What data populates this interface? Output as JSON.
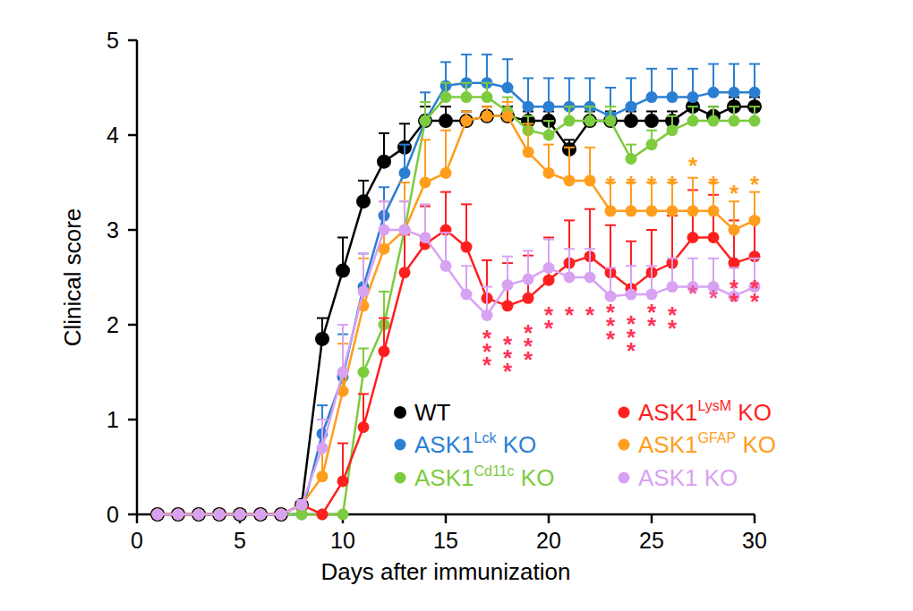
{
  "chart_data": {
    "type": "line",
    "x_label": "Days after immunization",
    "y_label": "Clinical score",
    "x": [
      1,
      2,
      3,
      4,
      5,
      6,
      7,
      8,
      9,
      10,
      11,
      12,
      13,
      14,
      15,
      16,
      17,
      18,
      19,
      20,
      21,
      22,
      23,
      24,
      25,
      26,
      27,
      28,
      29,
      30
    ],
    "xlim": [
      0,
      30
    ],
    "xticks": [
      0,
      5,
      10,
      15,
      20,
      25,
      30
    ],
    "ylim": [
      0,
      5
    ],
    "yticks": [
      0,
      1,
      2,
      3,
      4,
      5
    ],
    "grid": false,
    "legend": "bottom",
    "marker": "circle",
    "series": [
      {
        "name": "WT",
        "color": "#000000",
        "values": [
          0,
          0,
          0,
          0,
          0,
          0,
          0,
          0.1,
          1.85,
          2.57,
          3.3,
          3.72,
          3.87,
          4.15,
          4.15,
          4.15,
          4.2,
          4.2,
          4.15,
          4.15,
          3.85,
          4.15,
          4.15,
          4.15,
          4.15,
          4.15,
          4.3,
          4.2,
          4.3,
          4.3
        ],
        "errors": [
          0,
          0,
          0,
          0,
          0,
          0,
          0,
          0.05,
          0.22,
          0.35,
          0.22,
          0.3,
          0.25,
          0.15,
          0.15,
          0.1,
          0.1,
          0.1,
          0.1,
          0.1,
          0.1,
          0.1,
          0.1,
          0.1,
          0.1,
          0.1,
          0.1,
          0.1,
          0.1,
          0.1
        ]
      },
      {
        "name": "ASK1Lck KO",
        "color": "#2b7fd3",
        "values": [
          0,
          0,
          0,
          0,
          0,
          0,
          0,
          0,
          0.85,
          1.45,
          2.4,
          3.15,
          3.6,
          4.15,
          4.52,
          4.55,
          4.55,
          4.5,
          4.3,
          4.3,
          4.3,
          4.3,
          4.2,
          4.3,
          4.4,
          4.4,
          4.4,
          4.45,
          4.45,
          4.45
        ],
        "errors": [
          0,
          0,
          0,
          0,
          0,
          0,
          0,
          0.05,
          0.3,
          0.45,
          0.35,
          0.3,
          0.3,
          0.3,
          0.25,
          0.3,
          0.3,
          0.3,
          0.3,
          0.3,
          0.3,
          0.3,
          0.3,
          0.3,
          0.3,
          0.3,
          0.3,
          0.3,
          0.3,
          0.3
        ]
      },
      {
        "name": "ASK1Cd11c KO",
        "color": "#7dcb3e",
        "values": [
          0,
          0,
          0,
          0,
          0,
          0,
          0,
          0,
          0,
          0,
          1.5,
          2.0,
          3.0,
          4.15,
          4.4,
          4.4,
          4.4,
          4.25,
          4.05,
          4.0,
          4.15,
          4.15,
          4.15,
          3.75,
          3.9,
          4.05,
          4.15,
          4.15,
          4.15,
          4.15
        ],
        "errors": [
          0,
          0,
          0,
          0,
          0,
          0,
          0,
          0.05,
          0,
          0,
          0.25,
          0.35,
          0.3,
          0.2,
          0.15,
          0.15,
          0.15,
          0.15,
          0.15,
          0.15,
          0.15,
          0.15,
          0.15,
          0.15,
          0.15,
          0.15,
          0.15,
          0.15,
          0.15,
          0.15
        ]
      },
      {
        "name": "ASK1LysM KO",
        "color": "#ff1f1f",
        "values": [
          0,
          0,
          0,
          0,
          0,
          0,
          0,
          0.1,
          0,
          0.35,
          0.92,
          1.72,
          2.55,
          2.85,
          3.0,
          2.82,
          2.28,
          2.2,
          2.28,
          2.47,
          2.65,
          2.72,
          2.55,
          2.38,
          2.55,
          2.65,
          2.92,
          2.92,
          2.65,
          2.72
        ],
        "errors": [
          0,
          0,
          0,
          0,
          0,
          0,
          0,
          0.05,
          0,
          0.4,
          0.35,
          0.35,
          0.4,
          0.4,
          0.4,
          0.45,
          0.4,
          0.45,
          0.45,
          0.45,
          0.45,
          0.5,
          0.5,
          0.5,
          0.45,
          0.5,
          0.5,
          0.45,
          0.45,
          0.4
        ]
      },
      {
        "name": "ASK1GFAP KO",
        "color": "#ff9d1c",
        "values": [
          0,
          0,
          0,
          0,
          0,
          0,
          0,
          0.1,
          0.4,
          1.3,
          2.2,
          2.8,
          3.0,
          3.5,
          3.6,
          4.15,
          4.2,
          4.2,
          3.82,
          3.6,
          3.52,
          3.52,
          3.2,
          3.2,
          3.2,
          3.2,
          3.2,
          3.2,
          3.0,
          3.1
        ],
        "errors": [
          0,
          0,
          0,
          0,
          0,
          0,
          0,
          0.05,
          0.3,
          0.5,
          0.5,
          0.5,
          0.5,
          0.45,
          0.45,
          0.1,
          0.1,
          0.15,
          0.3,
          0.3,
          0.35,
          0.35,
          0.3,
          0.3,
          0.3,
          0.3,
          0.35,
          0.3,
          0.3,
          0.3
        ]
      },
      {
        "name": "ASK1 KO",
        "color": "#d8a2f3",
        "values": [
          0,
          0,
          0,
          0,
          0,
          0,
          0,
          0.1,
          0.7,
          1.5,
          2.35,
          3.0,
          3.0,
          2.92,
          2.62,
          2.32,
          2.1,
          2.42,
          2.48,
          2.6,
          2.5,
          2.5,
          2.3,
          2.32,
          2.32,
          2.4,
          2.4,
          2.4,
          2.3,
          2.4
        ],
        "errors": [
          0,
          0,
          0,
          0,
          0,
          0,
          0,
          0.05,
          0.3,
          0.5,
          0.4,
          0.3,
          0.3,
          0.35,
          0.35,
          0.3,
          0.3,
          0.3,
          0.3,
          0.3,
          0.3,
          0.3,
          0.3,
          0.3,
          0.3,
          0.3,
          0.3,
          0.3,
          0.3,
          0.3
        ]
      }
    ],
    "annotations": [
      {
        "x": 23,
        "y": 3.55,
        "text": "*",
        "color": "#ff9d1c"
      },
      {
        "x": 24,
        "y": 3.55,
        "text": "*",
        "color": "#ff9d1c"
      },
      {
        "x": 25,
        "y": 3.55,
        "text": "*",
        "color": "#ff9d1c"
      },
      {
        "x": 26,
        "y": 3.55,
        "text": "*",
        "color": "#ff9d1c"
      },
      {
        "x": 27,
        "y": 3.75,
        "text": "*",
        "color": "#ff9d1c"
      },
      {
        "x": 28,
        "y": 3.55,
        "text": "*",
        "color": "#ff9d1c"
      },
      {
        "x": 29,
        "y": 3.45,
        "text": "*",
        "color": "#ff9d1c"
      },
      {
        "x": 30,
        "y": 3.55,
        "text": "*",
        "color": "#ff9d1c"
      },
      {
        "x": 17,
        "y": 1.92,
        "text": "***",
        "color": "#ff3355"
      },
      {
        "x": 18,
        "y": 1.86,
        "text": "***",
        "color": "#ff3355"
      },
      {
        "x": 19,
        "y": 1.98,
        "text": "***",
        "color": "#ff3355"
      },
      {
        "x": 20,
        "y": 2.17,
        "text": "**",
        "color": "#ff3355"
      },
      {
        "x": 21,
        "y": 2.17,
        "text": "*",
        "color": "#ff3355"
      },
      {
        "x": 22,
        "y": 2.17,
        "text": "*",
        "color": "#ff3355"
      },
      {
        "x": 23,
        "y": 2.2,
        "text": "***",
        "color": "#ff3355"
      },
      {
        "x": 24,
        "y": 2.08,
        "text": "***",
        "color": "#ff3355"
      },
      {
        "x": 25,
        "y": 2.2,
        "text": "**",
        "color": "#ff3355"
      },
      {
        "x": 26,
        "y": 2.17,
        "text": "**",
        "color": "#ff3355"
      },
      {
        "x": 27,
        "y": 2.4,
        "text": "*",
        "color": "#e8579a"
      },
      {
        "x": 28,
        "y": 2.35,
        "text": "*",
        "color": "#e8579a"
      },
      {
        "x": 29,
        "y": 2.45,
        "text": "**",
        "color": "#ff3355"
      },
      {
        "x": 30,
        "y": 2.45,
        "text": "**",
        "color": "#ff3355"
      }
    ]
  }
}
